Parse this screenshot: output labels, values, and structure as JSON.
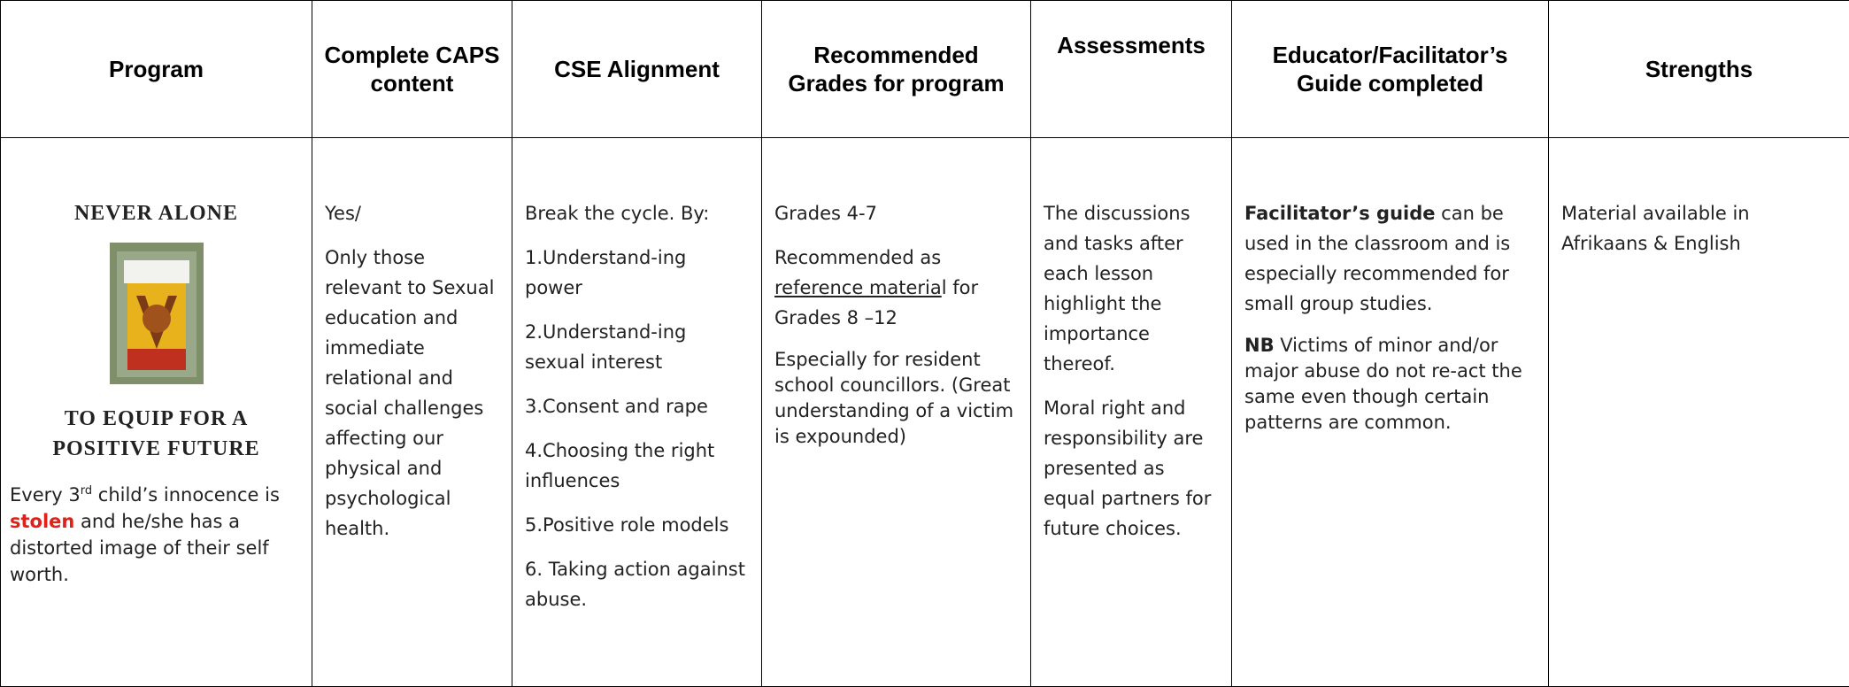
{
  "table": {
    "headers": [
      "Program",
      "Complete CAPS content",
      "CSE Alignment",
      "Recommended Grades for program",
      "Assessments",
      "Educator/Facilitator’s Guide completed",
      "Strengths"
    ],
    "program": {
      "name": "Never Alone",
      "tagline": "To Equip for a Positive Future",
      "description": [
        "Every 3",
        "rd",
        " child’s innocence is ",
        "stolen",
        " and he/she has a distorted image of their self worth."
      ]
    },
    "caps": [
      "Yes/",
      "Only those relevant to Sexual education and immediate relational and social challenges affecting our physical and psychological health."
    ],
    "cse": [
      "Break the cycle. By:",
      "1.Understand-ing power",
      "2.Understand-ing sexual interest",
      "3.Consent and rape",
      "4.Choosing the right influences",
      "5.Positive role models",
      "6. Taking action against abuse."
    ],
    "grades": [
      "Grades 4-7",
      [
        "Recommended as ",
        "reference materia",
        "l for Grades 8 –12"
      ],
      "Especially for resident school councillors. (Great understanding of a victim is expounded)"
    ],
    "assessments": [
      "The discussions and tasks after each lesson highlight the importance thereof.",
      "Moral right and responsibility are presented as equal partners for future choices."
    ],
    "guide": [
      [
        "Facilitator’s guide",
        " can be used in the classroom and is especially recommended for small group studies."
      ],
      [
        "NB",
        " Victims of minor and/or major abuse do not re-act the same even though certain patterns are common."
      ]
    ],
    "strengths": [
      "Material available in Afrikaans & English"
    ]
  }
}
